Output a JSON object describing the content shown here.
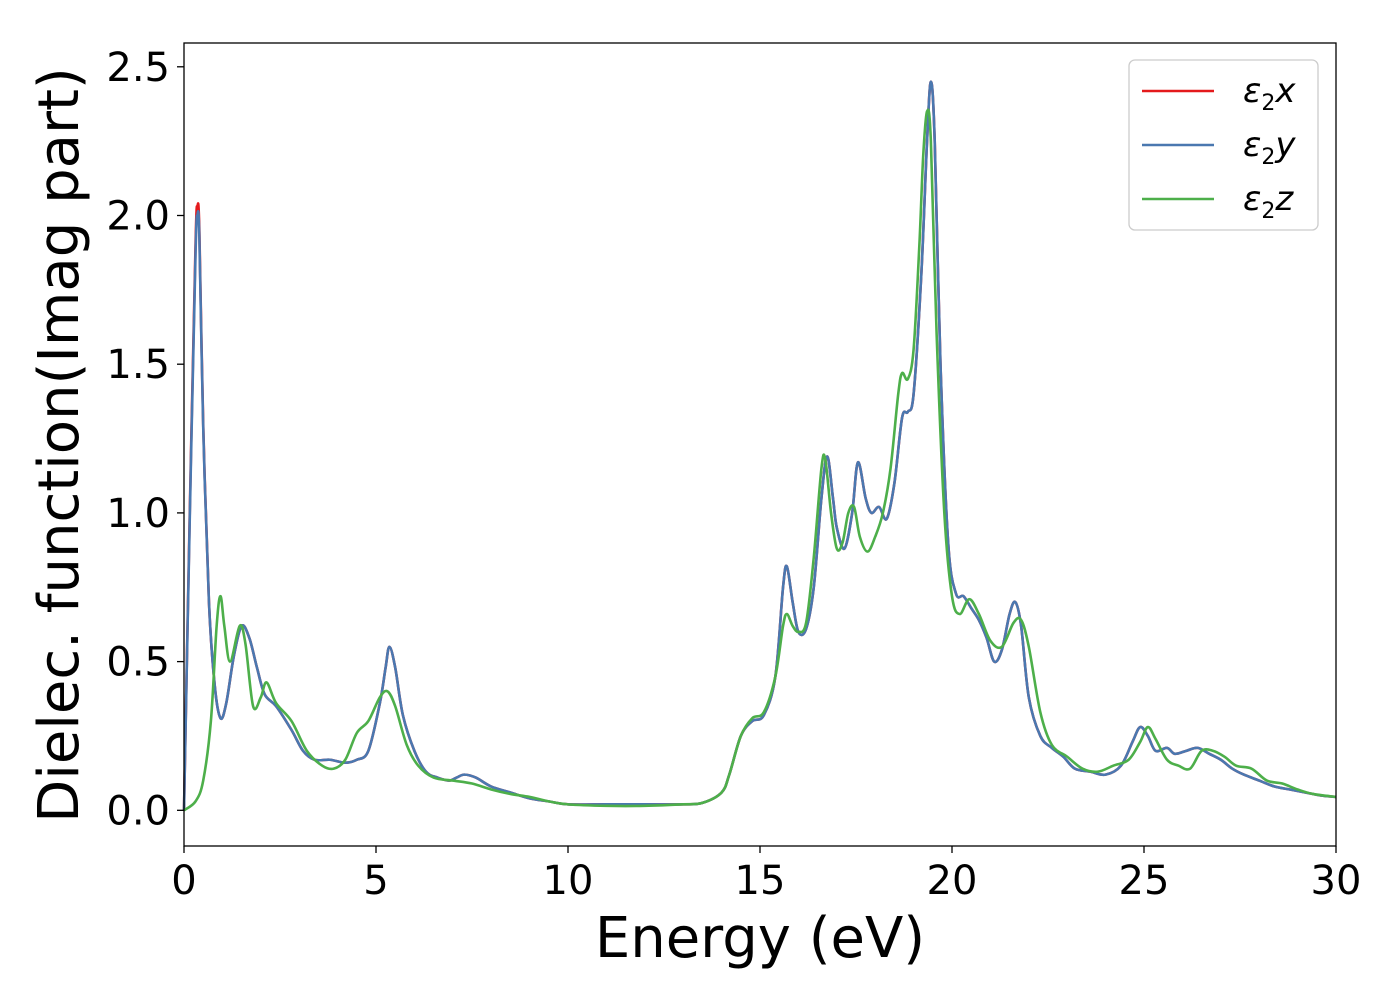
{
  "chart_data": {
    "type": "line",
    "title": "",
    "xlabel": "Energy (eV)",
    "ylabel": "Dielec. function(Imag part)",
    "xlim": [
      0,
      30
    ],
    "ylim": [
      -0.12,
      2.58
    ],
    "xticks": [
      0,
      5,
      10,
      15,
      20,
      25,
      30
    ],
    "xtick_labels": [
      "0",
      "5",
      "10",
      "15",
      "20",
      "25",
      "30"
    ],
    "yticks": [
      0.0,
      0.5,
      1.0,
      1.5,
      2.0,
      2.5
    ],
    "ytick_labels": [
      "0.0",
      "0.5",
      "1.0",
      "1.5",
      "2.0",
      "2.5"
    ],
    "grid": false,
    "legend_position": "top-right",
    "series": [
      {
        "name": "ε2x",
        "legend_symbol": "ε",
        "legend_sub": "2",
        "legend_var": "x",
        "color": "#e41a1c",
        "x": [
          0,
          0.15,
          0.3,
          0.35,
          0.4,
          0.5,
          0.65,
          0.8,
          0.95,
          1.1,
          1.3,
          1.5,
          1.7,
          1.9,
          2.1,
          2.4,
          2.8,
          3.1,
          3.4,
          3.8,
          4.2,
          4.5,
          4.8,
          5.1,
          5.25,
          5.35,
          5.5,
          5.7,
          6.0,
          6.3,
          6.6,
          6.9,
          7.1,
          7.3,
          7.6,
          8.0,
          8.5,
          9.0,
          9.5,
          10,
          11,
          12,
          13,
          13.5,
          14.0,
          14.2,
          14.5,
          14.8,
          15.1,
          15.4,
          15.6,
          15.7,
          15.85,
          16.0,
          16.2,
          16.4,
          16.6,
          16.75,
          16.9,
          17.0,
          17.2,
          17.4,
          17.55,
          17.75,
          17.9,
          18.1,
          18.3,
          18.5,
          18.7,
          18.85,
          19.0,
          19.2,
          19.35,
          19.45,
          19.55,
          19.7,
          19.9,
          20.1,
          20.3,
          20.5,
          20.7,
          20.9,
          21.1,
          21.3,
          21.5,
          21.65,
          21.8,
          22.0,
          22.3,
          22.6,
          22.9,
          23.2,
          23.6,
          24.0,
          24.4,
          24.7,
          24.9,
          25.1,
          25.3,
          25.6,
          25.8,
          26.1,
          26.4,
          26.7,
          27.0,
          27.3,
          27.6,
          28.0,
          28.4,
          28.8,
          29.2,
          29.6,
          30.0
        ],
        "values": [
          0.0,
          1.0,
          1.9,
          2.03,
          1.95,
          1.3,
          0.7,
          0.42,
          0.31,
          0.36,
          0.52,
          0.62,
          0.58,
          0.48,
          0.39,
          0.35,
          0.27,
          0.2,
          0.17,
          0.17,
          0.16,
          0.17,
          0.2,
          0.36,
          0.48,
          0.55,
          0.48,
          0.32,
          0.2,
          0.13,
          0.11,
          0.1,
          0.11,
          0.12,
          0.11,
          0.08,
          0.06,
          0.04,
          0.03,
          0.02,
          0.02,
          0.02,
          0.02,
          0.025,
          0.06,
          0.12,
          0.25,
          0.3,
          0.32,
          0.45,
          0.75,
          0.82,
          0.7,
          0.6,
          0.61,
          0.75,
          1.05,
          1.19,
          1.05,
          0.95,
          0.88,
          1.0,
          1.17,
          1.05,
          1.0,
          1.02,
          0.98,
          1.1,
          1.32,
          1.34,
          1.4,
          1.8,
          2.25,
          2.45,
          2.25,
          1.5,
          0.9,
          0.73,
          0.72,
          0.68,
          0.64,
          0.58,
          0.5,
          0.54,
          0.66,
          0.7,
          0.62,
          0.38,
          0.25,
          0.21,
          0.18,
          0.14,
          0.13,
          0.12,
          0.15,
          0.23,
          0.28,
          0.25,
          0.2,
          0.21,
          0.19,
          0.2,
          0.21,
          0.19,
          0.17,
          0.14,
          0.12,
          0.1,
          0.08,
          0.07,
          0.06,
          0.05,
          0.045
        ]
      },
      {
        "name": "ε2y",
        "legend_symbol": "ε",
        "legend_sub": "2",
        "legend_var": "y",
        "color": "#4a78b0",
        "x": [
          0,
          0.15,
          0.3,
          0.35,
          0.4,
          0.5,
          0.65,
          0.8,
          0.95,
          1.1,
          1.3,
          1.5,
          1.7,
          1.9,
          2.1,
          2.4,
          2.8,
          3.1,
          3.4,
          3.8,
          4.2,
          4.5,
          4.8,
          5.1,
          5.25,
          5.35,
          5.5,
          5.7,
          6.0,
          6.3,
          6.6,
          6.9,
          7.1,
          7.3,
          7.6,
          8.0,
          8.5,
          9.0,
          9.5,
          10,
          11,
          12,
          13,
          13.5,
          14.0,
          14.2,
          14.5,
          14.8,
          15.1,
          15.4,
          15.6,
          15.7,
          15.85,
          16.0,
          16.2,
          16.4,
          16.6,
          16.75,
          16.9,
          17.0,
          17.2,
          17.4,
          17.55,
          17.75,
          17.9,
          18.1,
          18.3,
          18.5,
          18.7,
          18.85,
          19.0,
          19.2,
          19.35,
          19.45,
          19.55,
          19.7,
          19.9,
          20.1,
          20.3,
          20.5,
          20.7,
          20.9,
          21.1,
          21.3,
          21.5,
          21.65,
          21.8,
          22.0,
          22.3,
          22.6,
          22.9,
          23.2,
          23.6,
          24.0,
          24.4,
          24.7,
          24.9,
          25.1,
          25.3,
          25.6,
          25.8,
          26.1,
          26.4,
          26.7,
          27.0,
          27.3,
          27.6,
          28.0,
          28.4,
          28.8,
          29.2,
          29.6,
          30.0
        ],
        "values": [
          0.0,
          0.98,
          1.87,
          2.0,
          1.93,
          1.29,
          0.7,
          0.42,
          0.31,
          0.36,
          0.52,
          0.62,
          0.58,
          0.48,
          0.39,
          0.35,
          0.27,
          0.2,
          0.17,
          0.17,
          0.16,
          0.17,
          0.2,
          0.36,
          0.48,
          0.55,
          0.48,
          0.32,
          0.2,
          0.13,
          0.11,
          0.1,
          0.11,
          0.12,
          0.11,
          0.08,
          0.06,
          0.04,
          0.03,
          0.02,
          0.02,
          0.02,
          0.02,
          0.025,
          0.06,
          0.12,
          0.25,
          0.3,
          0.32,
          0.45,
          0.75,
          0.82,
          0.7,
          0.6,
          0.61,
          0.75,
          1.05,
          1.19,
          1.05,
          0.95,
          0.88,
          1.0,
          1.17,
          1.05,
          1.0,
          1.02,
          0.98,
          1.1,
          1.32,
          1.34,
          1.4,
          1.8,
          2.25,
          2.45,
          2.25,
          1.5,
          0.9,
          0.73,
          0.72,
          0.68,
          0.64,
          0.58,
          0.5,
          0.54,
          0.66,
          0.7,
          0.62,
          0.38,
          0.25,
          0.21,
          0.18,
          0.14,
          0.13,
          0.12,
          0.15,
          0.23,
          0.28,
          0.25,
          0.2,
          0.21,
          0.19,
          0.2,
          0.21,
          0.19,
          0.17,
          0.14,
          0.12,
          0.1,
          0.08,
          0.07,
          0.06,
          0.05,
          0.045
        ]
      },
      {
        "name": "ε2z",
        "legend_symbol": "ε",
        "legend_sub": "2",
        "legend_var": "z",
        "color": "#4daf4a",
        "x": [
          0,
          0.3,
          0.5,
          0.7,
          0.85,
          0.95,
          1.05,
          1.2,
          1.45,
          1.6,
          1.8,
          2.0,
          2.15,
          2.4,
          2.8,
          3.2,
          3.6,
          3.9,
          4.2,
          4.5,
          4.8,
          5.1,
          5.3,
          5.5,
          5.8,
          6.1,
          6.5,
          7.0,
          7.5,
          8.0,
          8.5,
          9.0,
          9.5,
          10,
          11,
          12,
          13,
          13.5,
          14.0,
          14.2,
          14.5,
          14.8,
          15.1,
          15.4,
          15.6,
          15.7,
          15.85,
          16.0,
          16.2,
          16.4,
          16.6,
          16.7,
          16.85,
          17.0,
          17.15,
          17.3,
          17.45,
          17.6,
          17.8,
          18.0,
          18.2,
          18.4,
          18.6,
          18.7,
          18.85,
          19.0,
          19.15,
          19.25,
          19.35,
          19.45,
          19.6,
          19.8,
          20.0,
          20.2,
          20.45,
          20.7,
          21.0,
          21.3,
          21.6,
          21.8,
          22.0,
          22.3,
          22.6,
          23.0,
          23.4,
          23.8,
          24.2,
          24.6,
          24.9,
          25.1,
          25.3,
          25.6,
          25.9,
          26.2,
          26.5,
          26.8,
          27.1,
          27.4,
          27.8,
          28.2,
          28.6,
          29.0,
          29.4,
          30.0
        ],
        "values": [
          0.0,
          0.03,
          0.1,
          0.3,
          0.62,
          0.72,
          0.62,
          0.5,
          0.62,
          0.56,
          0.35,
          0.38,
          0.43,
          0.36,
          0.3,
          0.2,
          0.15,
          0.14,
          0.17,
          0.26,
          0.3,
          0.38,
          0.4,
          0.35,
          0.22,
          0.15,
          0.11,
          0.1,
          0.09,
          0.07,
          0.055,
          0.045,
          0.03,
          0.02,
          0.015,
          0.015,
          0.02,
          0.025,
          0.06,
          0.12,
          0.25,
          0.31,
          0.33,
          0.45,
          0.62,
          0.66,
          0.62,
          0.6,
          0.63,
          0.85,
          1.15,
          1.18,
          1.0,
          0.88,
          0.9,
          1.0,
          1.02,
          0.92,
          0.87,
          0.92,
          1.0,
          1.15,
          1.4,
          1.47,
          1.45,
          1.55,
          1.9,
          2.2,
          2.35,
          2.25,
          1.6,
          1.0,
          0.72,
          0.66,
          0.71,
          0.66,
          0.57,
          0.55,
          0.63,
          0.64,
          0.55,
          0.33,
          0.22,
          0.18,
          0.14,
          0.13,
          0.15,
          0.17,
          0.23,
          0.28,
          0.24,
          0.17,
          0.15,
          0.14,
          0.2,
          0.2,
          0.18,
          0.15,
          0.14,
          0.1,
          0.09,
          0.07,
          0.055,
          0.045
        ]
      }
    ]
  }
}
